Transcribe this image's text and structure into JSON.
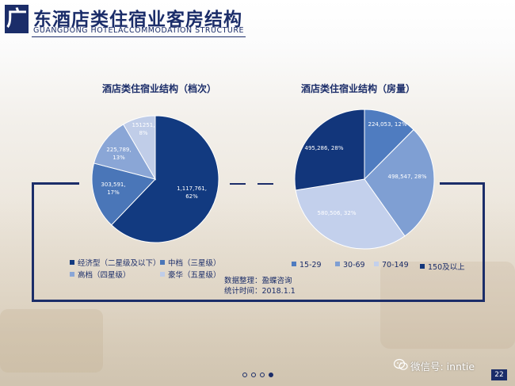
{
  "header": {
    "logo_char": "广",
    "title": "东酒店类住宿业客房结构",
    "subtitle": "GUANGDONG HOTELACCOMMODATION STRUCTURE"
  },
  "chart_data": [
    {
      "type": "pie",
      "title": "酒店类住宿业结构（档次）",
      "slices": [
        {
          "name": "经济型（二星级及以下）",
          "value": 1117761,
          "value_label": "1,117,761,",
          "pct_label": "62%",
          "color": "#123a80"
        },
        {
          "name": "中档（三星级）",
          "value": 303591,
          "value_label": "303,591,",
          "pct_label": "17%",
          "color": "#4a76b8"
        },
        {
          "name": "高档（四星级）",
          "value": 225789,
          "value_label": "225,789,",
          "pct_label": "13%",
          "color": "#8aa6d6"
        },
        {
          "name": "豪华（五星级）",
          "value": 151251,
          "value_label": "151251,",
          "pct_label": "8%",
          "color": "#c0cde8"
        }
      ]
    },
    {
      "type": "pie",
      "title": "酒店类住宿业结构（房量）",
      "slices": [
        {
          "name": "15-29",
          "value": 224053,
          "value_label": "224,053,",
          "pct_label": "12%",
          "color": "#4f7cc0"
        },
        {
          "name": "30-69",
          "value": 498547,
          "value_label": "498,547,",
          "pct_label": "28%",
          "color": "#7f9fd3"
        },
        {
          "name": "70-149",
          "value": 580506,
          "value_label": "580,506,",
          "pct_label": "32%",
          "color": "#c3d0ec"
        },
        {
          "name": "150及以上",
          "value": 495286,
          "value_label": "495,286,",
          "pct_label": "28%",
          "color": "#12367b"
        }
      ]
    }
  ],
  "notes": {
    "source": "数据整理：盈蝶咨询",
    "date": "统计时间：2018.1.1"
  },
  "footer": {
    "watermark": "微信号: inntie",
    "page_number": "22"
  },
  "pager": {
    "count": 4,
    "active": 4
  }
}
